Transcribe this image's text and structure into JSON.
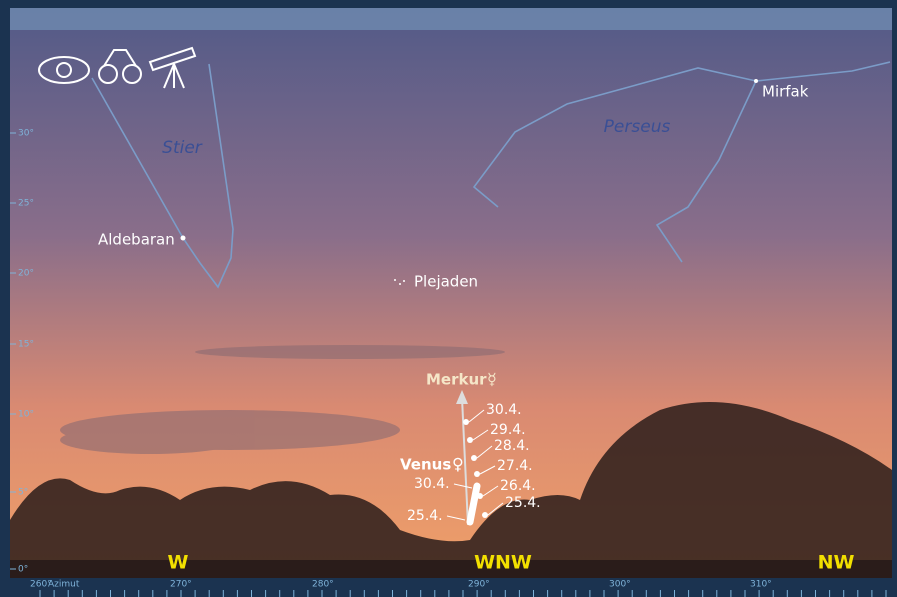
{
  "constellations": [
    "Stier",
    "Perseus"
  ],
  "stars": [
    "Aldebaran",
    "Mirfak",
    "Plejaden"
  ],
  "planets": [
    {
      "name": "Merkur",
      "symbol": "☿",
      "dates": [
        "30.4.",
        "29.4.",
        "28.4.",
        "27.4.",
        "26.4.",
        "25.4."
      ]
    },
    {
      "name": "Venus",
      "symbol": "♀",
      "dates": [
        "30.4.",
        "25.4."
      ]
    }
  ],
  "altitude_scale": [
    "30°",
    "25°",
    "20°",
    "15°",
    "10°",
    "5°",
    "0°"
  ],
  "azimuth_scale": [
    "260°",
    "Azimut",
    "270°",
    "280°",
    "290°",
    "300°",
    "310°"
  ],
  "directions": [
    "W",
    "WNW",
    "NW"
  ]
}
